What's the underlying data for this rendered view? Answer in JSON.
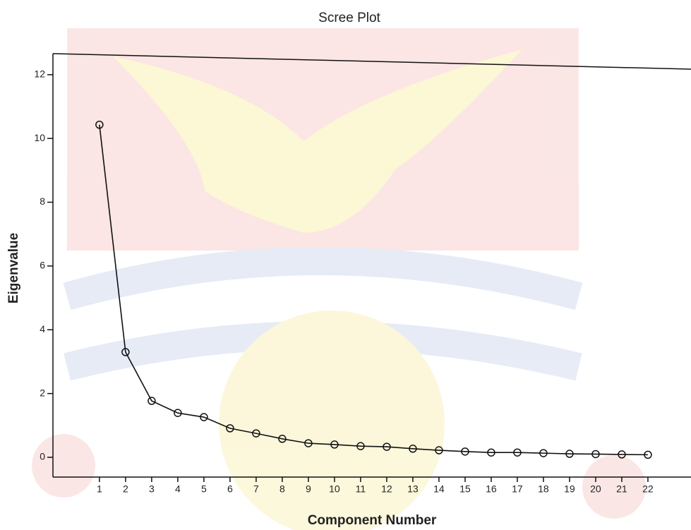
{
  "chart_data": {
    "type": "line",
    "title": "Scree Plot",
    "x_label": "Component Number",
    "y_label": "Eigenvalue",
    "x": [
      1,
      2,
      3,
      4,
      5,
      6,
      7,
      8,
      9,
      10,
      11,
      12,
      13,
      14,
      15,
      16,
      17,
      18,
      19,
      20,
      21,
      22
    ],
    "series": [
      {
        "color": "#111111",
        "values": [
          10.43,
          3.3,
          1.77,
          1.39,
          1.26,
          0.91,
          0.75,
          0.58,
          0.44,
          0.4,
          0.35,
          0.33,
          0.27,
          0.22,
          0.18,
          0.15,
          0.15,
          0.13,
          0.11,
          0.1,
          0.09,
          0.08
        ]
      }
    ],
    "xlim": [
      -0.78,
      23.65
    ],
    "xticks": [
      1,
      2,
      3,
      4,
      5,
      6,
      7,
      8,
      9,
      10,
      11,
      12,
      13,
      14,
      15,
      16,
      17,
      18,
      19,
      20,
      21,
      22
    ],
    "ylim": [
      -0.62,
      12.66
    ],
    "yticks": [
      0,
      2,
      4,
      6,
      8,
      10,
      12
    ],
    "grid": false,
    "marker": "circle"
  }
}
